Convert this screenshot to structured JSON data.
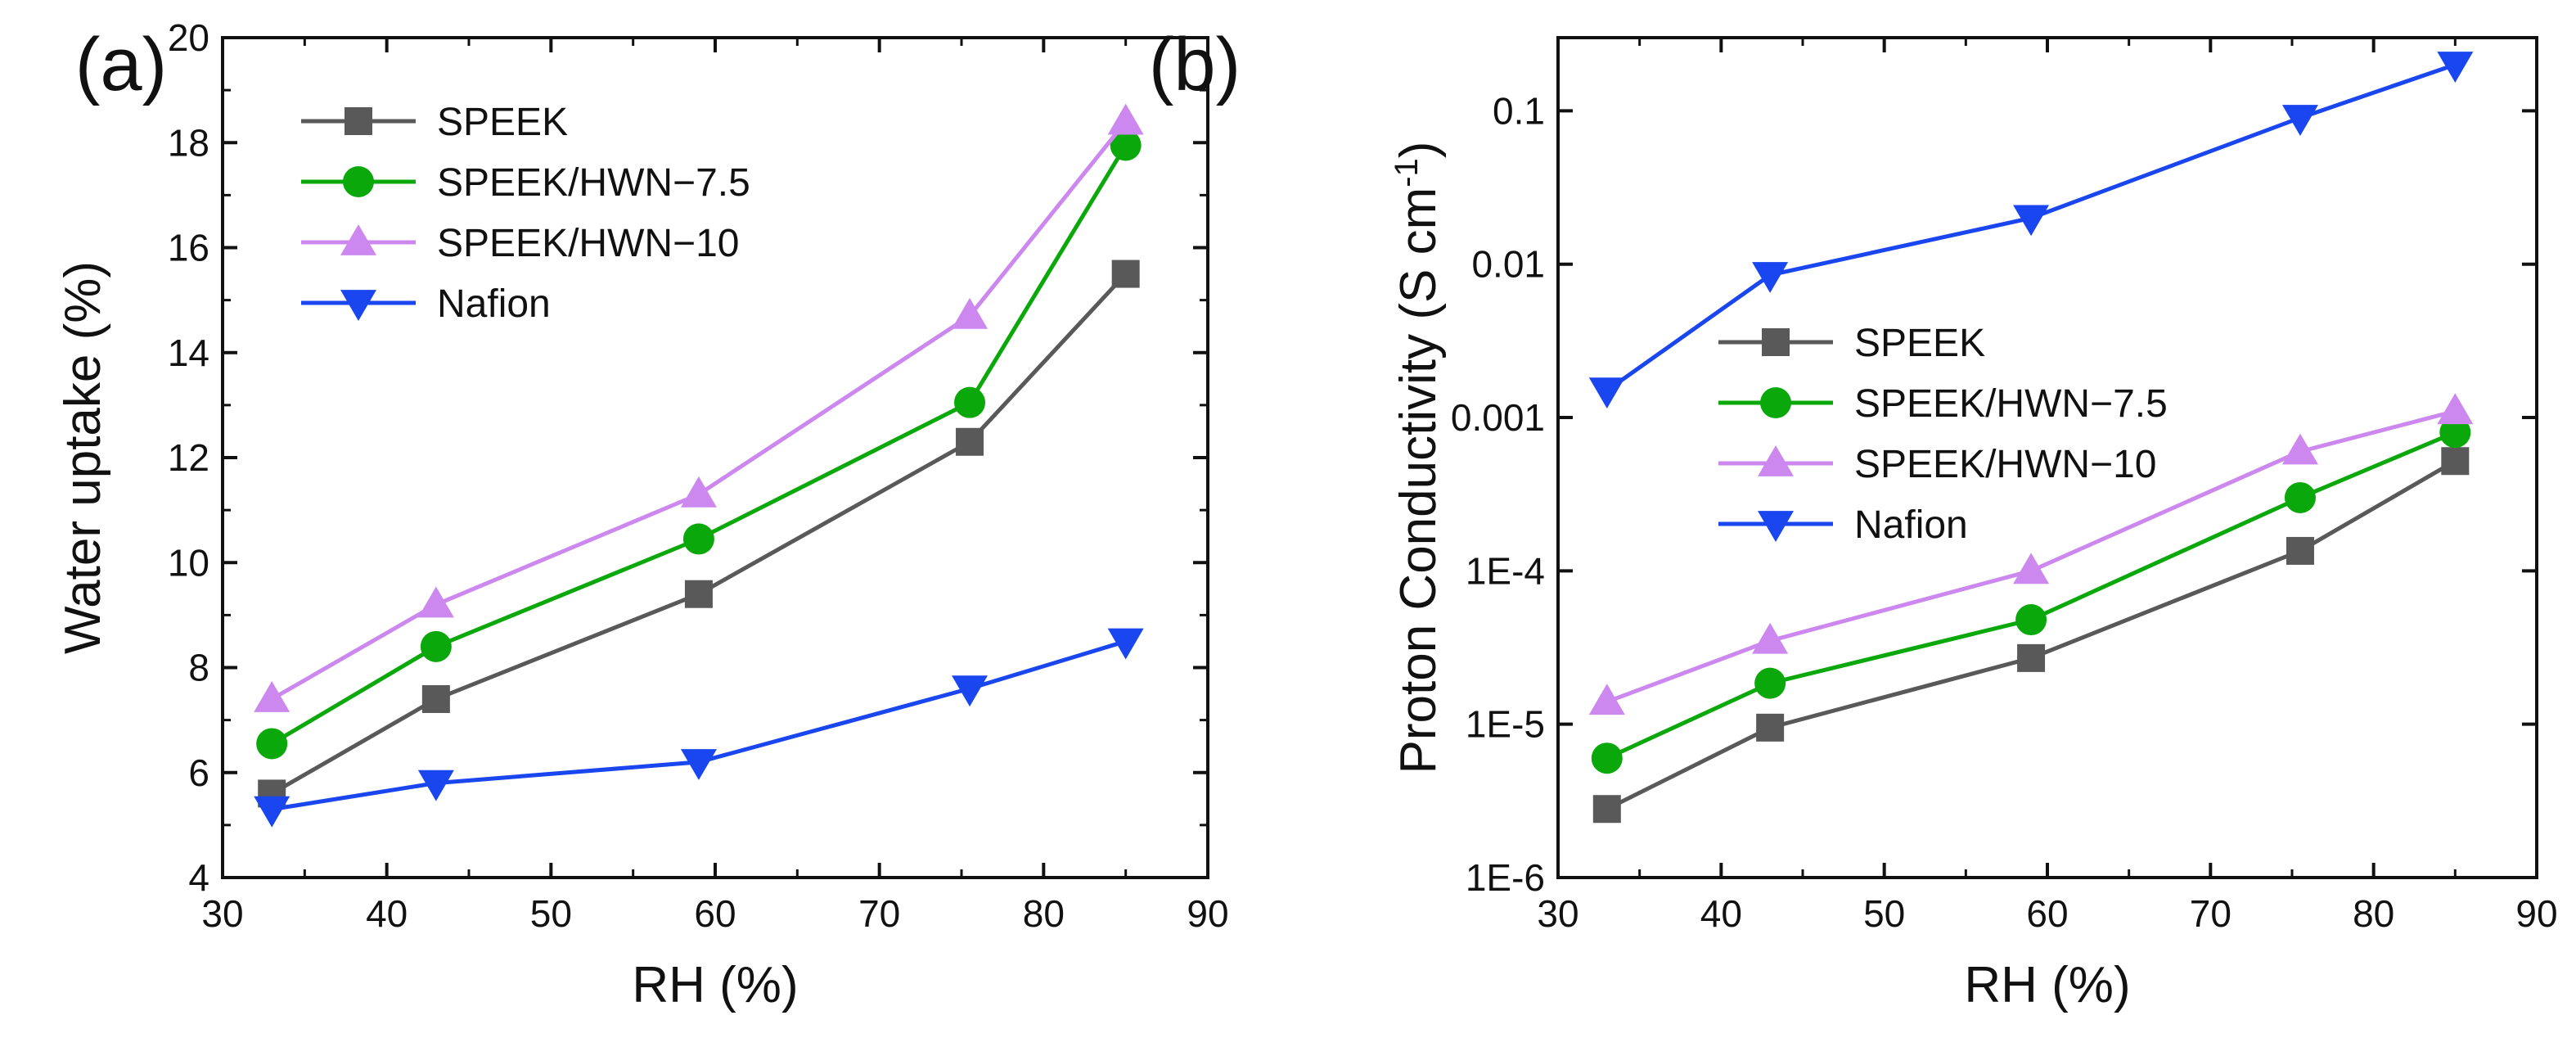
{
  "chart_data": [
    {
      "panel_label": "(a)",
      "type": "line",
      "xlabel": "RH (%)",
      "ylabel": "Water uptake (%)",
      "xlim": [
        30,
        90
      ],
      "ylim": [
        4,
        20
      ],
      "yscale": "linear",
      "grid": false,
      "legend_position": "top-left",
      "x_ticks": [
        30,
        40,
        50,
        60,
        70,
        80,
        90
      ],
      "y_ticks": [
        4,
        6,
        8,
        10,
        12,
        14,
        16,
        18,
        20
      ],
      "x_tick_labels": [
        "30",
        "40",
        "50",
        "60",
        "70",
        "80",
        "90"
      ],
      "y_tick_labels": [
        "4",
        "6",
        "8",
        "10",
        "12",
        "14",
        "16",
        "18",
        "20"
      ],
      "x": [
        33,
        43,
        59,
        75.5,
        85
      ],
      "series": [
        {
          "name": "SPEEK",
          "color": "#595959",
          "marker": "square",
          "values": [
            5.6,
            7.4,
            9.4,
            12.3,
            15.5
          ]
        },
        {
          "name": "SPEEK/HWN−7.5",
          "color": "#0aa80a",
          "marker": "circle",
          "values": [
            6.55,
            8.4,
            10.45,
            13.05,
            17.95
          ]
        },
        {
          "name": "SPEEK/HWN−10",
          "color": "#cc88ee",
          "marker": "triangle-up",
          "values": [
            7.4,
            9.2,
            11.3,
            14.7,
            18.4
          ]
        },
        {
          "name": "Nafion",
          "color": "#1a46f0",
          "marker": "triangle-down",
          "values": [
            5.3,
            5.8,
            6.2,
            7.6,
            8.5
          ]
        }
      ]
    },
    {
      "panel_label": "(b)",
      "type": "line",
      "xlabel": "RH (%)",
      "ylabel": "Proton Conductivity (S cm",
      "ylabel_superscript": "-1",
      "ylabel_suffix": ")",
      "xlim": [
        30,
        90
      ],
      "ylim": [
        1e-06,
        0.3
      ],
      "yscale": "log",
      "grid": false,
      "legend_position": "center-left",
      "x_ticks": [
        30,
        40,
        50,
        60,
        70,
        80,
        90
      ],
      "y_ticks": [
        1e-06,
        1e-05,
        0.0001,
        0.001,
        0.01,
        0.1
      ],
      "x_tick_labels": [
        "30",
        "40",
        "50",
        "60",
        "70",
        "80",
        "90"
      ],
      "y_tick_labels": [
        "1E-6",
        "1E-5",
        "1E-4",
        "0.001",
        "0.01",
        "0.1"
      ],
      "x": [
        33,
        43,
        59,
        75.5,
        85
      ],
      "series": [
        {
          "name": "SPEEK",
          "color": "#595959",
          "marker": "square",
          "values": [
            2.8e-06,
            9.5e-06,
            2.7e-05,
            0.000135,
            0.00052
          ]
        },
        {
          "name": "SPEEK/HWN−7.5",
          "color": "#0aa80a",
          "marker": "circle",
          "values": [
            6e-06,
            1.85e-05,
            4.8e-05,
            0.0003,
            0.0008
          ]
        },
        {
          "name": "SPEEK/HWN−10",
          "color": "#cc88ee",
          "marker": "triangle-up",
          "values": [
            1.4e-05,
            3.5e-05,
            0.0001,
            0.0006,
            0.0011
          ]
        },
        {
          "name": "Nafion",
          "color": "#1a46f0",
          "marker": "triangle-down",
          "values": [
            0.0015,
            0.0085,
            0.02,
            0.09,
            0.2
          ]
        }
      ]
    }
  ]
}
